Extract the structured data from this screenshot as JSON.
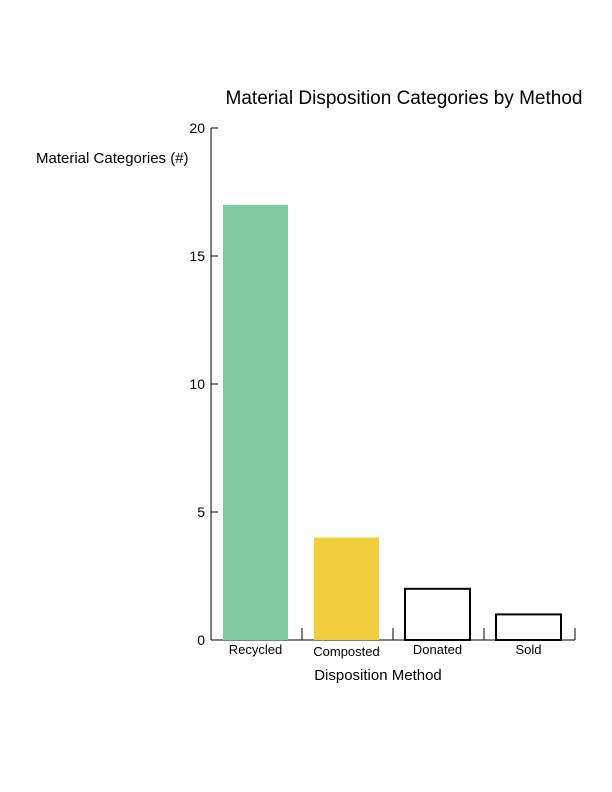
{
  "chart_data": {
    "type": "bar",
    "title": "Material Disposition Categories by Method",
    "xlabel": "Disposition Method",
    "ylabel": "Material Categories (#)",
    "categories": [
      "Recycled",
      "Composted",
      "Donated",
      "Sold"
    ],
    "values": [
      17,
      4,
      2,
      1
    ],
    "colors": [
      "#82c9a1",
      "#f0ce3e",
      "#ffffff",
      "#ffffff"
    ],
    "outline_colors": [
      "none",
      "none",
      "#000000",
      "#000000"
    ],
    "ylim": [
      0,
      20
    ],
    "yticks": [
      0,
      5,
      10,
      15,
      20
    ],
    "grid": false,
    "legend": "none"
  }
}
